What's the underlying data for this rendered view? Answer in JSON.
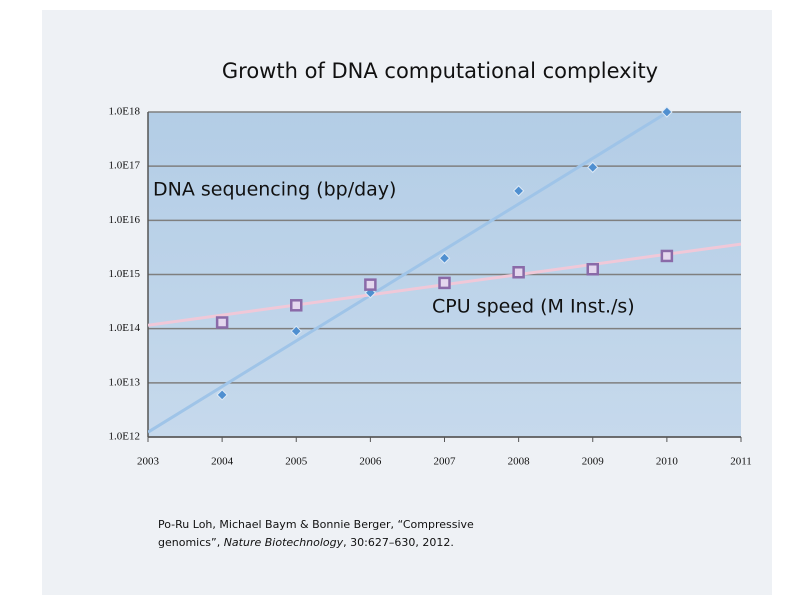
{
  "chart_data": {
    "type": "scatter",
    "title": "Growth of DNA computational complexity",
    "x": [
      2004,
      2005,
      2006,
      2007,
      2008,
      2009,
      2010
    ],
    "series": [
      {
        "name": "DNA sequencing (bp/day)",
        "color": "#4f8fd0",
        "trend_color": "#9fc4e8",
        "marker": "diamond",
        "values": [
          6000000000000,
          90000000000000,
          460000000000000,
          2000000000000000,
          35000000000000000,
          95000000000000000,
          1000000000000000000
        ]
      },
      {
        "name": "CPU speed (M Inst./s)",
        "color": "#8a6aa8",
        "trend_color": "#f0c8d8",
        "marker": "square",
        "values": [
          130000000000000,
          270000000000000,
          650000000000000,
          700000000000000,
          1100000000000000,
          1250000000000000,
          2200000000000000
        ]
      }
    ],
    "xlim": [
      2003,
      2011
    ],
    "xticks": [
      2003,
      2004,
      2005,
      2006,
      2007,
      2008,
      2009,
      2010,
      2011
    ],
    "ylim": [
      1000000000000,
      1000000000000000000
    ],
    "yticks": [
      {
        "value": 1000000000000,
        "label": "1.0E12"
      },
      {
        "value": 10000000000000,
        "label": "1.0E13"
      },
      {
        "value": 100000000000000,
        "label": "1.0E14"
      },
      {
        "value": 1000000000000000,
        "label": "1.0E15"
      },
      {
        "value": 10000000000000000,
        "label": "1.0E16"
      },
      {
        "value": 100000000000000000,
        "label": "1.0E17"
      },
      {
        "value": 1000000000000000000,
        "label": "1.0E18"
      }
    ],
    "log_y": true,
    "grid": true,
    "trendline": true,
    "citation": [
      "Po-Ru Loh, Michael Baym & Bonnie Berger, “Compressive",
      "genomics”, ",
      "Nature Biotechnology",
      ", 30:627–630, 2012."
    ]
  }
}
